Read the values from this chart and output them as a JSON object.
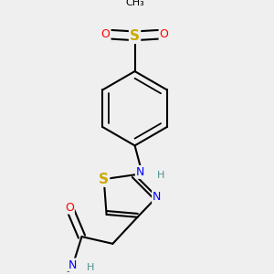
{
  "bg_color": "#efefef",
  "atom_colors": {
    "C": "#000000",
    "N": "#0000ff",
    "O": "#ff0000",
    "S": "#ccaa00",
    "H": "#4a9090",
    "H_amide": "#4a9090"
  },
  "bond_color": "#000000",
  "bond_width": 1.5
}
